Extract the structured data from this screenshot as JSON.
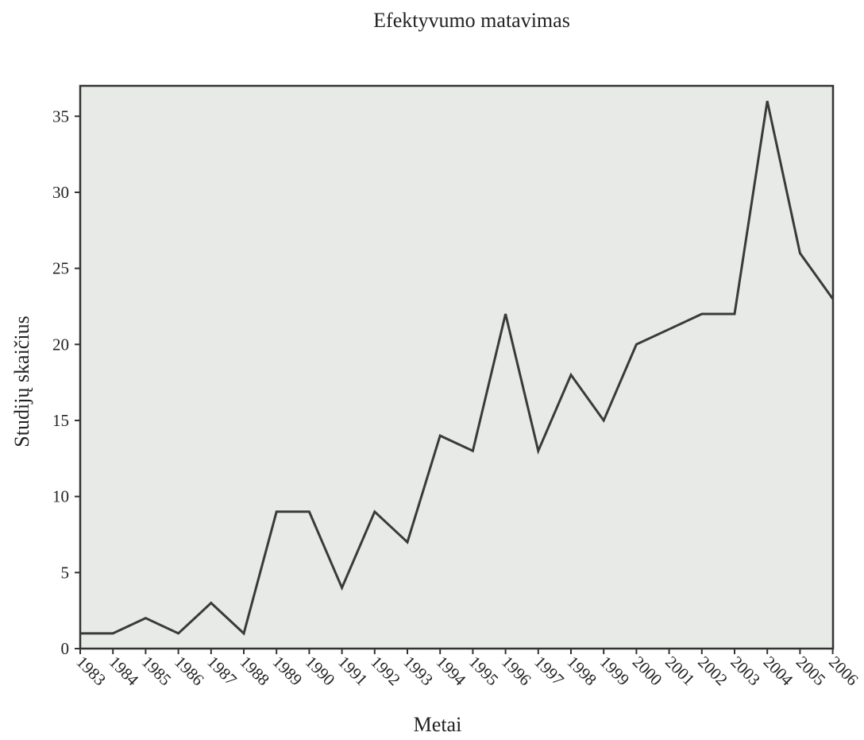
{
  "chart_data": {
    "type": "line",
    "title": "Efektyvumo matavimas",
    "xlabel": "Metai",
    "ylabel": "Studijų skaičius",
    "categories": [
      "1983",
      "1984",
      "1985",
      "1986",
      "1987",
      "1988",
      "1989",
      "1990",
      "1991",
      "1992",
      "1993",
      "1994",
      "1995",
      "1996",
      "1997",
      "1998",
      "1999",
      "2000",
      "2001",
      "2002",
      "2003",
      "2004",
      "2005",
      "2006"
    ],
    "series": [
      {
        "values": [
          1,
          1,
          2,
          1,
          3,
          1,
          9,
          9,
          4,
          9,
          7,
          14,
          13,
          22,
          13,
          18,
          15,
          20,
          21,
          22,
          22,
          36,
          26,
          23
        ]
      }
    ],
    "ylim": [
      0,
      37
    ],
    "yticks": [
      0,
      5,
      10,
      15,
      20,
      25,
      30,
      35
    ],
    "grid": false,
    "colors": {
      "line": "#3a3a3a",
      "plot_background": "#e8eae8",
      "frame": "#333333"
    }
  }
}
